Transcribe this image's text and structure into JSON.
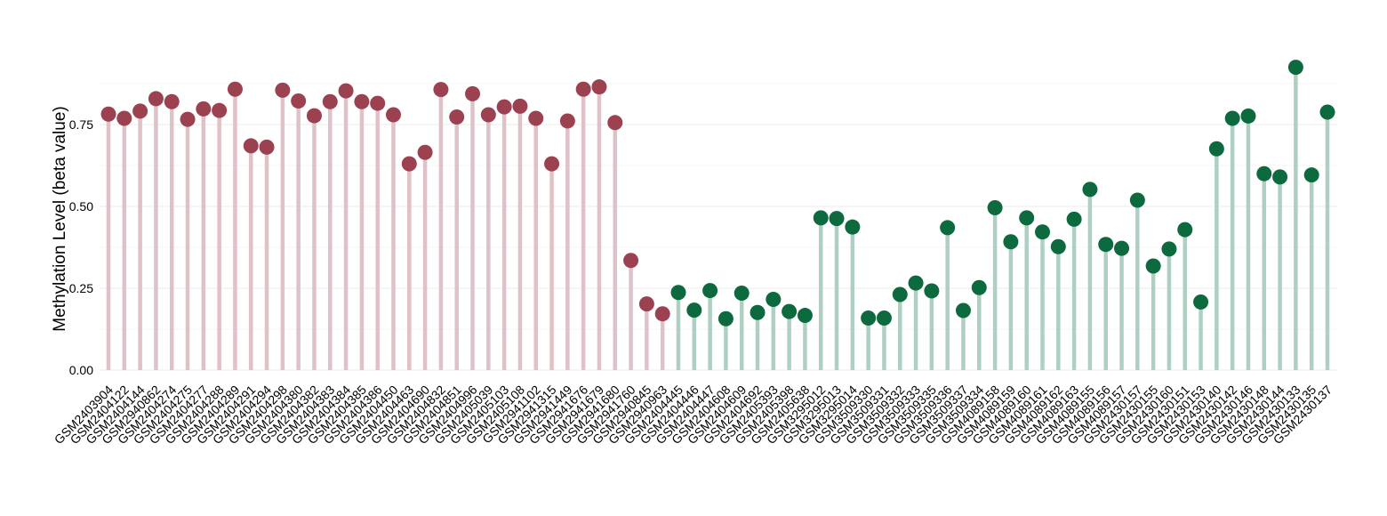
{
  "chart_data": {
    "type": "lollipop",
    "title": "",
    "xlabel": "",
    "ylabel": "Methylation Level (beta value)",
    "ylim": [
      0,
      0.95
    ],
    "yticks": [
      "0.00",
      "0.25",
      "0.50",
      "0.75"
    ],
    "ytick_values": [
      0,
      0.25,
      0.5,
      0.75
    ],
    "grid": true,
    "legend": "none",
    "colors": {
      "group1_point": "#9b4150",
      "group1_stem": "#dfc2c8",
      "group2_point": "#0c6a3e",
      "group2_stem": "#aecfc2"
    },
    "categories": [
      "GSM2403904",
      "GSM2404122",
      "GSM2404144",
      "GSM2940862",
      "GSM2404274",
      "GSM2404275",
      "GSM2404277",
      "GSM2404288",
      "GSM2404289",
      "GSM2404291",
      "GSM2404294",
      "GSM2404298",
      "GSM2404380",
      "GSM2404382",
      "GSM2404383",
      "GSM2404384",
      "GSM2404385",
      "GSM2404386",
      "GSM2404450",
      "GSM2404463",
      "GSM2404690",
      "GSM2404832",
      "GSM2404851",
      "GSM2404996",
      "GSM2405039",
      "GSM2405103",
      "GSM2405108",
      "GSM2941102",
      "GSM2941315",
      "GSM2941449",
      "GSM2941676",
      "GSM2941679",
      "GSM2941680",
      "GSM2941760",
      "GSM2940845",
      "GSM2940963",
      "GSM2404445",
      "GSM2404446",
      "GSM2404447",
      "GSM2404608",
      "GSM2404609",
      "GSM2404692",
      "GSM2405393",
      "GSM2405398",
      "GSM2405638",
      "GSM3295012",
      "GSM3295013",
      "GSM3295014",
      "GSM3509330",
      "GSM3509331",
      "GSM3509332",
      "GSM3509333",
      "GSM3509335",
      "GSM3509336",
      "GSM3509337",
      "GSM3509334",
      "GSM4089158",
      "GSM4089159",
      "GSM4089160",
      "GSM4089161",
      "GSM4089162",
      "GSM4089163",
      "GSM4089155",
      "GSM4089156",
      "GSM4089157",
      "GSM2430157",
      "GSM2430155",
      "GSM2430160",
      "GSM2430151",
      "GSM2430153",
      "GSM2430140",
      "GSM2430142",
      "GSM2430146",
      "GSM2430148",
      "GSM2430144",
      "GSM2430133",
      "GSM2430135",
      "GSM2430137"
    ],
    "values": [
      0.782,
      0.769,
      0.791,
      0.829,
      0.82,
      0.766,
      0.798,
      0.793,
      0.858,
      0.685,
      0.681,
      0.855,
      0.822,
      0.777,
      0.82,
      0.853,
      0.82,
      0.815,
      0.78,
      0.63,
      0.665,
      0.857,
      0.773,
      0.844,
      0.78,
      0.804,
      0.806,
      0.769,
      0.63,
      0.761,
      0.858,
      0.865,
      0.756,
      0.335,
      0.202,
      0.172,
      0.237,
      0.183,
      0.243,
      0.157,
      0.235,
      0.176,
      0.216,
      0.179,
      0.167,
      0.465,
      0.463,
      0.437,
      0.159,
      0.159,
      0.231,
      0.266,
      0.242,
      0.435,
      0.182,
      0.252,
      0.496,
      0.392,
      0.465,
      0.422,
      0.377,
      0.461,
      0.552,
      0.384,
      0.372,
      0.519,
      0.318,
      0.37,
      0.429,
      0.208,
      0.676,
      0.769,
      0.776,
      0.6,
      0.59,
      0.925,
      0.596,
      0.788
    ],
    "groups": [
      1,
      1,
      1,
      1,
      1,
      1,
      1,
      1,
      1,
      1,
      1,
      1,
      1,
      1,
      1,
      1,
      1,
      1,
      1,
      1,
      1,
      1,
      1,
      1,
      1,
      1,
      1,
      1,
      1,
      1,
      1,
      1,
      1,
      1,
      1,
      1,
      2,
      2,
      2,
      2,
      2,
      2,
      2,
      2,
      2,
      2,
      2,
      2,
      2,
      2,
      2,
      2,
      2,
      2,
      2,
      2,
      2,
      2,
      2,
      2,
      2,
      2,
      2,
      2,
      2,
      2,
      2,
      2,
      2,
      2,
      2,
      2,
      2,
      2,
      2,
      2,
      2,
      2
    ]
  }
}
